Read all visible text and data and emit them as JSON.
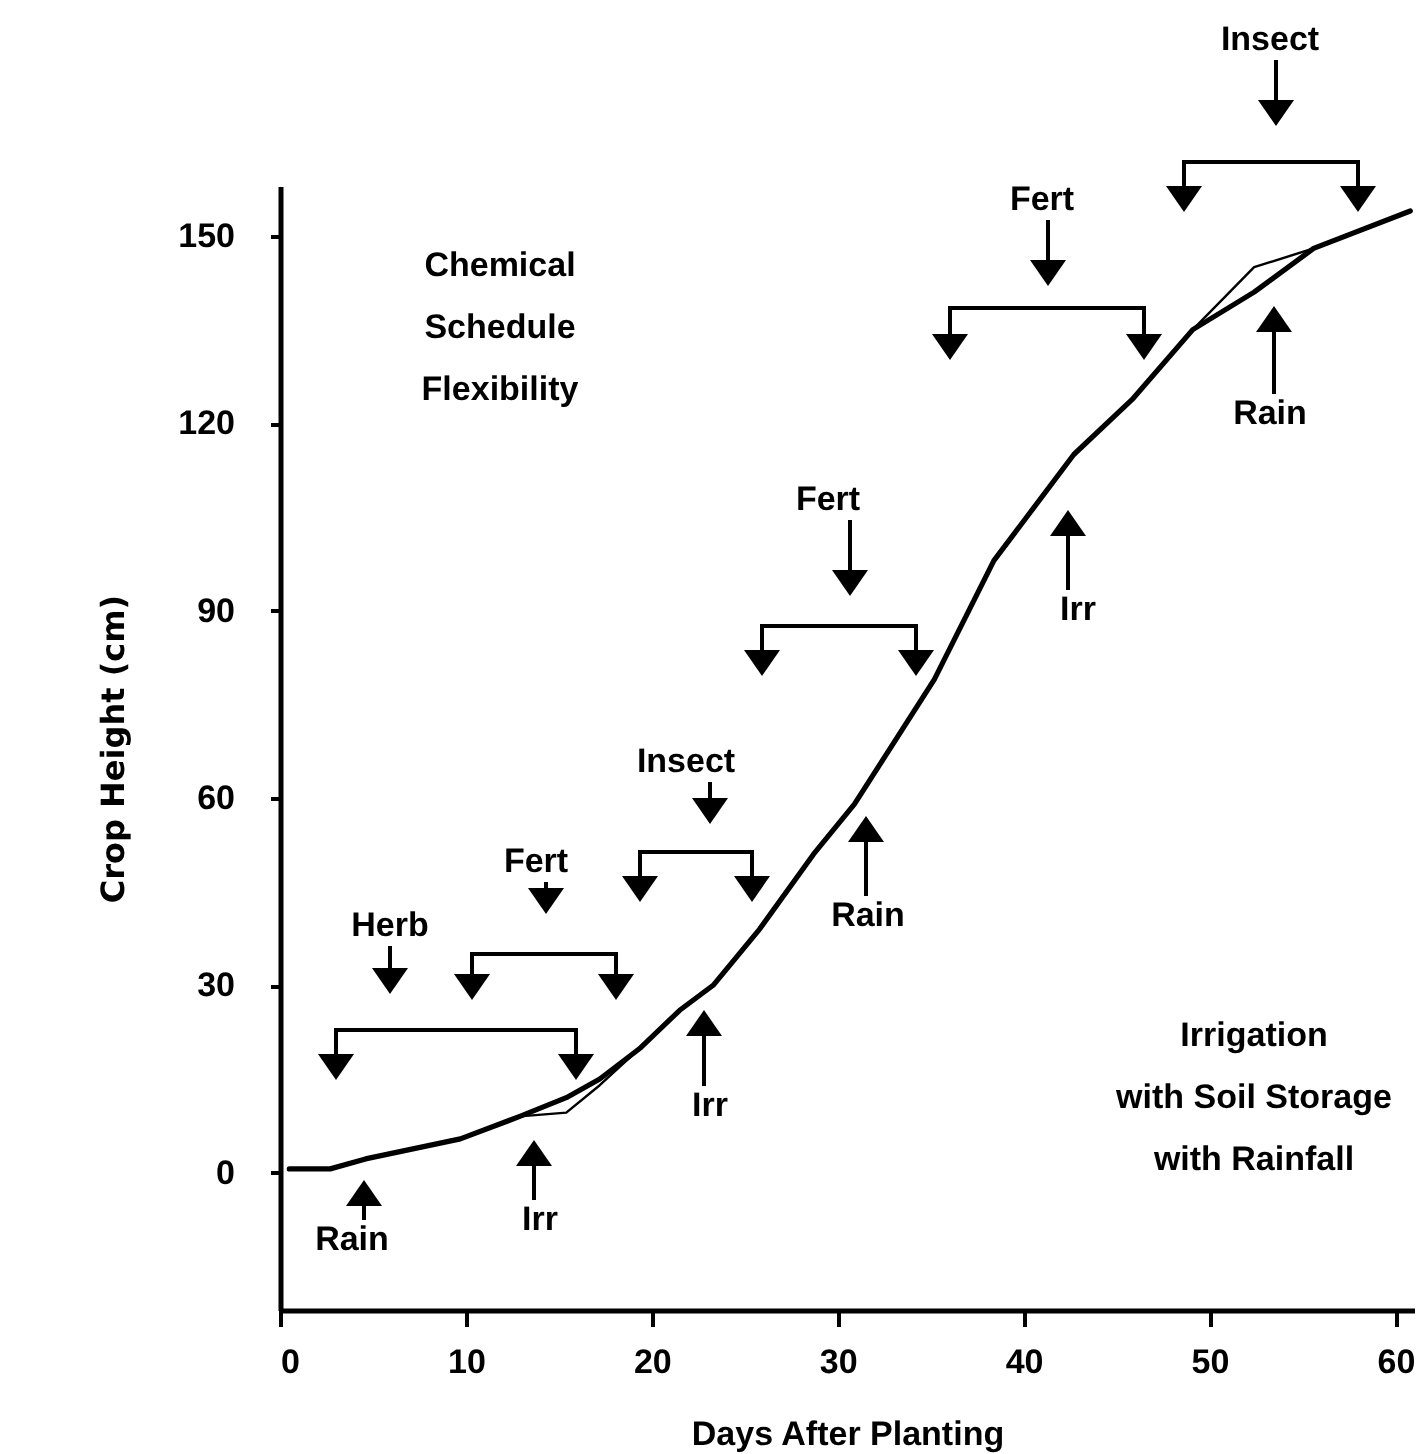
{
  "chart_data": {
    "type": "line",
    "xlabel": "Days After Planting",
    "ylabel": "Crop Height (cm)",
    "x": [
      0.5,
      2.7,
      4.6,
      9.7,
      12.9,
      15.4,
      17.2,
      19.4,
      21.5,
      23.3,
      25.8,
      28.7,
      30.9,
      35.2,
      38.4,
      42.7,
      45.9,
      49.1,
      52.4,
      55.6,
      60.8
    ],
    "series": [
      {
        "color": "#000000",
        "values": [
          0.6,
          0.6,
          2.2,
          5.4,
          9,
          9.6,
          14,
          20,
          26,
          30,
          39,
          51,
          59,
          79,
          98,
          115,
          124,
          135,
          145,
          148,
          154
        ]
      },
      {
        "color": "#000000",
        "values": [
          0.6,
          0.6,
          2.2,
          5.4,
          9,
          12,
          15,
          20,
          26,
          30,
          39,
          51,
          59,
          79,
          98,
          115,
          124,
          135,
          141,
          148,
          154
        ]
      }
    ],
    "xlim": [
      0,
      61
    ],
    "ylim": [
      -22,
      158
    ],
    "xticks": [
      0,
      10,
      20,
      30,
      40,
      50,
      60
    ],
    "yticks": [
      0,
      30,
      60,
      90,
      120,
      150
    ],
    "grid": false,
    "annotations": [
      "Herb",
      "Fert",
      "Insect",
      "Fert",
      "Fert",
      "Insect",
      "Rain",
      "Irr",
      "Irr",
      "Rain",
      "Irr",
      "Rain",
      "Chemical\nSchedule\nFlexibility",
      "Irrigation\nwith Soil Storage\nwith Rainfall"
    ]
  }
}
